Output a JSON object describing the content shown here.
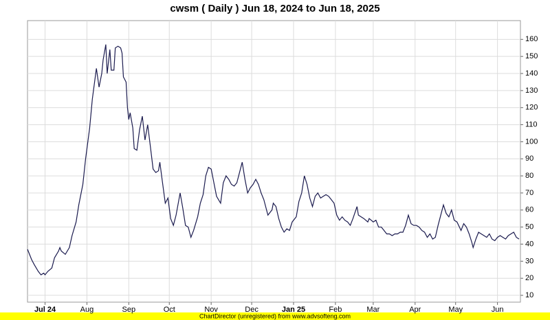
{
  "chart_data": {
    "type": "line",
    "title": "cwsm ( Daily ) Jun 18, 2024 to Jun 18, 2025",
    "footer": "ChartDirector (unregistered) from www.advsofteng.com",
    "color": "#1a1a4e",
    "grid": true,
    "x": [
      0,
      3,
      5,
      8,
      10,
      12,
      13,
      15,
      18,
      20,
      23,
      24,
      25,
      28,
      31,
      33,
      36,
      38,
      41,
      43,
      46,
      48,
      51,
      53,
      55,
      56,
      58,
      59,
      61,
      62,
      64,
      65,
      67,
      69,
      70,
      71,
      73,
      74,
      75,
      76,
      78,
      79,
      81,
      83,
      85,
      87,
      89,
      91,
      93,
      95,
      97,
      98,
      100,
      102,
      104,
      106,
      108,
      110,
      113,
      115,
      117,
      119,
      121,
      123,
      126,
      128,
      130,
      132,
      134,
      136,
      138,
      140,
      143,
      145,
      147,
      149,
      151,
      153,
      155,
      157,
      159,
      161,
      163,
      165,
      167,
      169,
      171,
      173,
      175,
      178,
      181,
      182,
      184,
      186,
      188,
      190,
      192,
      194,
      196,
      199,
      201,
      203,
      205,
      207,
      209,
      211,
      213,
      215,
      217,
      219,
      221,
      223,
      225,
      227,
      229,
      231,
      233,
      235,
      237,
      239,
      241,
      244,
      245,
      247,
      249,
      252,
      253,
      256,
      258,
      260,
      262,
      264,
      266,
      268,
      270,
      272,
      274,
      276,
      278,
      280,
      282,
      284,
      286,
      288,
      290,
      292,
      294,
      296,
      298,
      300,
      302,
      304,
      306,
      308,
      310,
      312,
      314,
      316,
      318,
      321,
      323,
      325,
      327,
      329,
      330,
      332,
      334,
      336,
      338,
      340,
      342,
      344,
      346,
      348,
      350,
      352,
      354,
      356,
      358,
      360,
      362,
      364
    ],
    "values": [
      37,
      31,
      28,
      24,
      22,
      23,
      22,
      24,
      26,
      32,
      36,
      38,
      36,
      34,
      38,
      45,
      53,
      63,
      75,
      90,
      108,
      125,
      143,
      132,
      140,
      148,
      157,
      140,
      154,
      142,
      142,
      155,
      156,
      155,
      152,
      138,
      135,
      120,
      113,
      117,
      108,
      96,
      95,
      107,
      115,
      101,
      110,
      97,
      84,
      82,
      83,
      88,
      76,
      64,
      67,
      55,
      51,
      57,
      70,
      61,
      51,
      50,
      44,
      48,
      56,
      64,
      69,
      80,
      85,
      84,
      76,
      68,
      64,
      76,
      80,
      78,
      75,
      74,
      76,
      82,
      88,
      78,
      70,
      73,
      75,
      78,
      75,
      70,
      66,
      57,
      60,
      64,
      62,
      55,
      50,
      47,
      49,
      48,
      53,
      56,
      65,
      70,
      80,
      75,
      67,
      62,
      68,
      70,
      67,
      68,
      69,
      68,
      66,
      64,
      57,
      54,
      56,
      54,
      53,
      51,
      55,
      62,
      57,
      56,
      55,
      53,
      55,
      53,
      54,
      50,
      50,
      48,
      46,
      46,
      45,
      46,
      46,
      47,
      47,
      51,
      57,
      52,
      51,
      51,
      50,
      48,
      47,
      44,
      46,
      43,
      44,
      51,
      57,
      63,
      58,
      56,
      60,
      54,
      53,
      48,
      52,
      50,
      46,
      41,
      38,
      43,
      47,
      46,
      45,
      44,
      46,
      43,
      42,
      44,
      45,
      44,
      43,
      45,
      46,
      47,
      44,
      43
    ],
    "xlim": [
      0,
      365
    ],
    "xticks": [
      {
        "value": 13,
        "label": "Jul 24"
      },
      {
        "value": 44,
        "label": "Aug"
      },
      {
        "value": 75,
        "label": "Sep"
      },
      {
        "value": 105,
        "label": "Oct"
      },
      {
        "value": 136,
        "label": "Nov"
      },
      {
        "value": 166,
        "label": "Dec"
      },
      {
        "value": 197,
        "label": "Jan 25"
      },
      {
        "value": 228,
        "label": "Feb"
      },
      {
        "value": 256,
        "label": "Mar"
      },
      {
        "value": 287,
        "label": "Apr"
      },
      {
        "value": 317,
        "label": "May"
      },
      {
        "value": 348,
        "label": "Jun"
      }
    ],
    "ylim": [
      6,
      171
    ],
    "yticks": [
      10,
      20,
      30,
      40,
      50,
      60,
      70,
      80,
      90,
      100,
      110,
      120,
      130,
      140,
      150,
      160
    ]
  }
}
